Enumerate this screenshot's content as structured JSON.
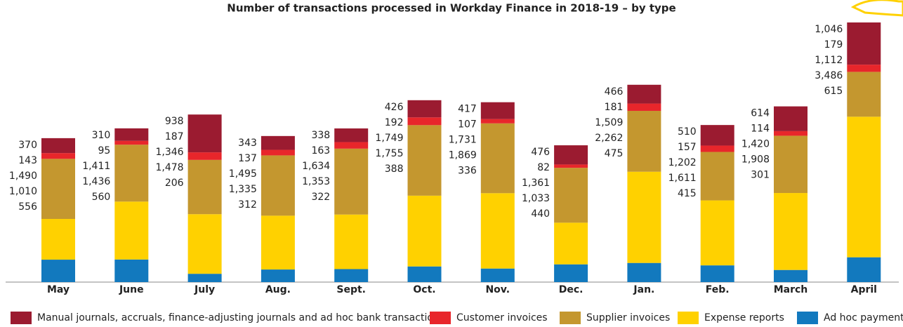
{
  "chart_data": {
    "type": "stacked-bar",
    "title": "Number of transactions processed in Workday Finance in 2018-19 – by type",
    "categories": [
      "May",
      "June",
      "July",
      "Aug.",
      "Sept.",
      "Oct.",
      "Nov.",
      "Dec.",
      "Jan.",
      "Feb.",
      "March",
      "April"
    ],
    "series": [
      {
        "name": "Manual journals, accruals, finance-adjusting journals and ad hoc bank transactions",
        "color": "#9b1b30",
        "values": [
          370,
          310,
          938,
          343,
          338,
          426,
          417,
          476,
          466,
          510,
          614,
          1046
        ],
        "value_labels": [
          "370",
          "310",
          "938",
          "343",
          "338",
          "426",
          "417",
          "476",
          "466",
          "510",
          "614",
          "1,046"
        ]
      },
      {
        "name": "Customer invoices",
        "color": "#e8262b",
        "values": [
          143,
          95,
          187,
          137,
          163,
          192,
          107,
          82,
          181,
          157,
          114,
          179
        ],
        "value_labels": [
          "143",
          "95",
          "187",
          "137",
          "163",
          "192",
          "107",
          "82",
          "181",
          "157",
          "114",
          "179"
        ]
      },
      {
        "name": "Supplier invoices",
        "color": "#c4972f",
        "values": [
          1490,
          1411,
          1346,
          1495,
          1634,
          1749,
          1731,
          1361,
          1509,
          1202,
          1420,
          1112
        ],
        "value_labels": [
          "1,490",
          "1,411",
          "1,346",
          "1,495",
          "1,634",
          "1,749",
          "1,731",
          "1,361",
          "1,509",
          "1,202",
          "1,420",
          "1,112"
        ]
      },
      {
        "name": "Expense reports",
        "color": "#ffd100",
        "values": [
          1010,
          1436,
          1478,
          1335,
          1353,
          1755,
          1869,
          1033,
          2262,
          1611,
          1908,
          3486
        ],
        "value_labels": [
          "1,010",
          "1,436",
          "1,478",
          "1,335",
          "1,353",
          "1,755",
          "1,869",
          "1,033",
          "2,262",
          "1,611",
          "1,908",
          "3,486"
        ]
      },
      {
        "name": "Ad hoc payments",
        "color": "#1279be",
        "values": [
          556,
          560,
          206,
          312,
          322,
          388,
          336,
          440,
          475,
          415,
          301,
          615
        ],
        "value_labels": [
          "556",
          "560",
          "206",
          "312",
          "322",
          "388",
          "336",
          "440",
          "475",
          "415",
          "301",
          "615"
        ]
      }
    ]
  }
}
